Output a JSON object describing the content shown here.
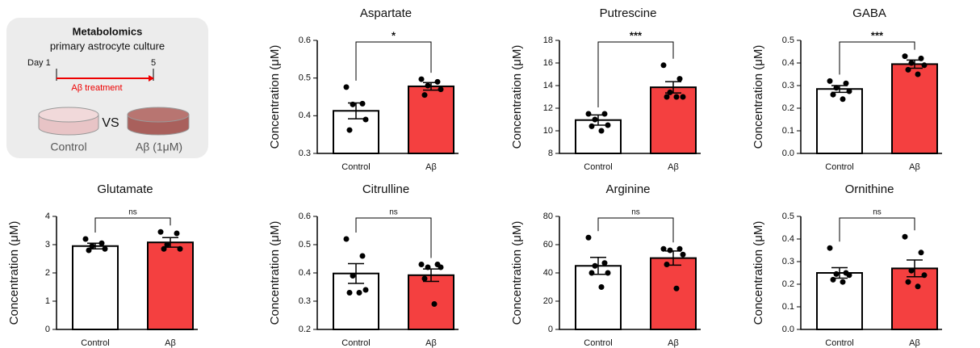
{
  "schematic": {
    "title": "Metabolomics",
    "subtitle": "primary astrocyte culture",
    "day_start": "Day 1",
    "day_end": "5",
    "treatment": "Aβ treatment",
    "vs": "VS",
    "left_label": "Control",
    "right_label": "Aβ (1μM)"
  },
  "chart_data": [
    {
      "type": "bar",
      "title": "Aspartate",
      "ylabel": "Concentration (μM)",
      "categories": [
        "Control",
        "Aβ"
      ],
      "colors": [
        "#ffffff",
        "#f44040"
      ],
      "values": [
        0.413,
        0.478
      ],
      "errors": [
        0.021,
        0.01
      ],
      "points": [
        [
          0.476,
          0.432,
          0.43,
          0.39,
          0.362
        ],
        [
          0.497,
          0.49,
          0.48,
          0.47,
          0.455
        ]
      ],
      "significance": "*",
      "ylim": [
        0.3,
        0.6
      ],
      "yticks": [
        0.3,
        0.4,
        0.5,
        0.6
      ]
    },
    {
      "type": "bar",
      "title": "Putrescine",
      "ylabel": "Concentration (μM)",
      "categories": [
        "Control",
        "Aβ"
      ],
      "colors": [
        "#ffffff",
        "#f44040"
      ],
      "values": [
        10.95,
        13.85
      ],
      "errors": [
        0.45,
        0.5
      ],
      "points": [
        [
          11.5,
          11.5,
          11.0,
          10.5,
          10.4,
          10.0
        ],
        [
          15.8,
          14.6,
          13.4,
          13.0,
          13.0,
          13.0
        ]
      ],
      "significance": "***",
      "ylim": [
        8,
        18
      ],
      "yticks": [
        8,
        10,
        12,
        14,
        16,
        18
      ]
    },
    {
      "type": "bar",
      "title": "GABA",
      "ylabel": "Concentration (μM)",
      "categories": [
        "Control",
        "Aβ"
      ],
      "colors": [
        "#ffffff",
        "#f44040"
      ],
      "values": [
        0.285,
        0.395
      ],
      "errors": [
        0.015,
        0.018
      ],
      "points": [
        [
          0.32,
          0.31,
          0.29,
          0.275,
          0.26,
          0.24
        ],
        [
          0.43,
          0.42,
          0.4,
          0.39,
          0.37,
          0.35
        ]
      ],
      "significance": "***",
      "ylim": [
        0,
        0.5
      ],
      "yticks": [
        {
          "value": 0,
          "label": "0.0"
        },
        0.1,
        0.2,
        0.3,
        0.4,
        0.5
      ]
    },
    {
      "type": "bar",
      "title": "Glutamate",
      "ylabel": "Concentration (μM)",
      "categories": [
        "Control",
        "Aβ"
      ],
      "colors": [
        "#ffffff",
        "#f44040"
      ],
      "values": [
        2.95,
        3.08
      ],
      "errors": [
        0.1,
        0.17
      ],
      "points": [
        [
          3.2,
          3.05,
          2.95,
          2.85,
          2.8
        ],
        [
          3.45,
          3.4,
          3.0,
          2.85,
          2.85
        ]
      ],
      "significance": "ns",
      "ylim": [
        0,
        4
      ],
      "yticks": [
        0,
        1,
        2,
        3,
        4
      ]
    },
    {
      "type": "bar",
      "title": "Citrulline",
      "ylabel": "Concentration (μM)",
      "categories": [
        "Control",
        "Aβ"
      ],
      "colors": [
        "#ffffff",
        "#f44040"
      ],
      "values": [
        0.398,
        0.392
      ],
      "errors": [
        0.035,
        0.022
      ],
      "points": [
        [
          0.52,
          0.46,
          0.39,
          0.34,
          0.33,
          0.33
        ],
        [
          0.43,
          0.43,
          0.42,
          0.42,
          0.38,
          0.29
        ]
      ],
      "significance": "ns",
      "ylim": [
        0.2,
        0.6
      ],
      "yticks": [
        0.2,
        0.3,
        0.4,
        0.5,
        0.6
      ]
    },
    {
      "type": "bar",
      "title": "Arginine",
      "ylabel": "Concentration (μM)",
      "categories": [
        "Control",
        "Aβ"
      ],
      "colors": [
        "#ffffff",
        "#f44040"
      ],
      "values": [
        45,
        50.5
      ],
      "errors": [
        6,
        5
      ],
      "points": [
        [
          65,
          47,
          45,
          40,
          40,
          30
        ],
        [
          57,
          57,
          56,
          53,
          46,
          29
        ]
      ],
      "significance": "ns",
      "ylim": [
        0,
        80
      ],
      "yticks": [
        0,
        20,
        40,
        60,
        80
      ]
    },
    {
      "type": "bar",
      "title": "Ornithine",
      "ylabel": "Concentration (μM)",
      "categories": [
        "Control",
        "Aβ"
      ],
      "colors": [
        "#ffffff",
        "#f44040"
      ],
      "values": [
        0.25,
        0.27
      ],
      "errors": [
        0.023,
        0.037
      ],
      "points": [
        [
          0.36,
          0.25,
          0.245,
          0.24,
          0.22,
          0.21
        ],
        [
          0.41,
          0.34,
          0.26,
          0.24,
          0.21,
          0.19
        ]
      ],
      "significance": "ns",
      "ylim": [
        0,
        0.5
      ],
      "yticks": [
        {
          "value": 0,
          "label": "0.0"
        },
        0.1,
        0.2,
        0.3,
        0.4,
        0.5
      ]
    }
  ]
}
